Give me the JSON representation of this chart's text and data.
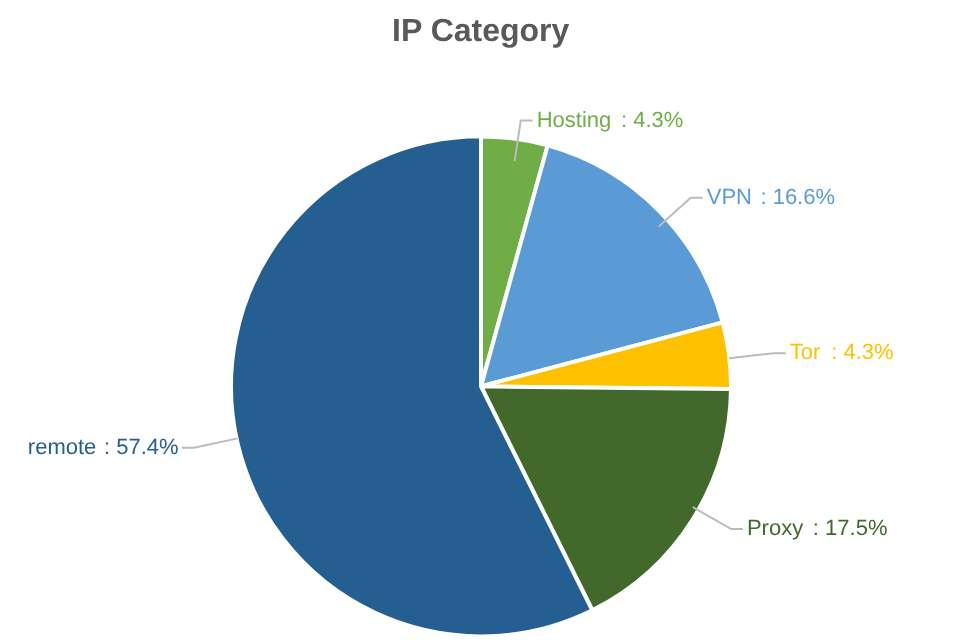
{
  "chart_data": {
    "type": "pie",
    "title": "IP Category",
    "categories": [
      "Hosting",
      "VPN",
      "Tor",
      "Proxy",
      "remote"
    ],
    "values": [
      4.3,
      16.6,
      4.3,
      17.5,
      57.4
    ],
    "colors": [
      "#70ad47",
      "#5b9bd5",
      "#ffc000",
      "#43682b",
      "#255e91"
    ],
    "value_labels": [
      ": 4.3%",
      ": 16.6%",
      ": 4.3%",
      ": 17.5%",
      ": 57.4%"
    ]
  }
}
